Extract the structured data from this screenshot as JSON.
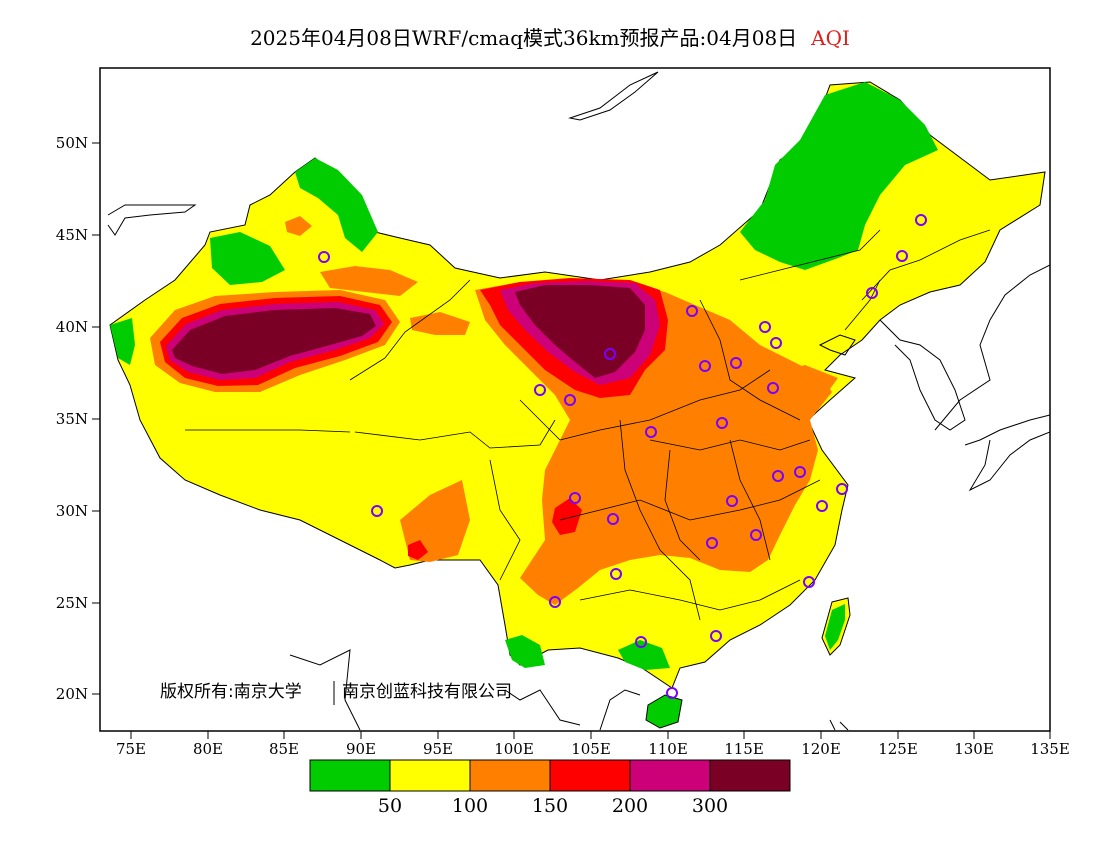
{
  "title": {
    "main": "2025年04月08日WRF/cmaq模式36km预报产品:04月08日",
    "variable": "AQI"
  },
  "axes": {
    "lat_labels": [
      "50N",
      "45N",
      "40N",
      "35N",
      "30N",
      "25N",
      "20N"
    ],
    "lon_labels": [
      "75E",
      "80E",
      "85E",
      "90E",
      "95E",
      "100E",
      "105E",
      "110E",
      "115E",
      "120E",
      "125E",
      "130E",
      "135E"
    ]
  },
  "copyright": {
    "part1": "版权所有:南京大学",
    "part2": "南京创蓝科技有限公司"
  },
  "legend": {
    "colors": [
      "#00cc00",
      "#ffff00",
      "#ff8000",
      "#ff0000",
      "#cc0077",
      "#7a0025"
    ],
    "labels": [
      "50",
      "100",
      "150",
      "200",
      "300"
    ]
  },
  "colors": {
    "good": "#00cc00",
    "moderate": "#ffff00",
    "usg": "#ff8000",
    "unhealthy": "#ff0000",
    "very_unhealthy": "#cc0077",
    "hazardous": "#7a0025",
    "station": "#7a00ff",
    "title_accent": "#e0201c"
  }
}
